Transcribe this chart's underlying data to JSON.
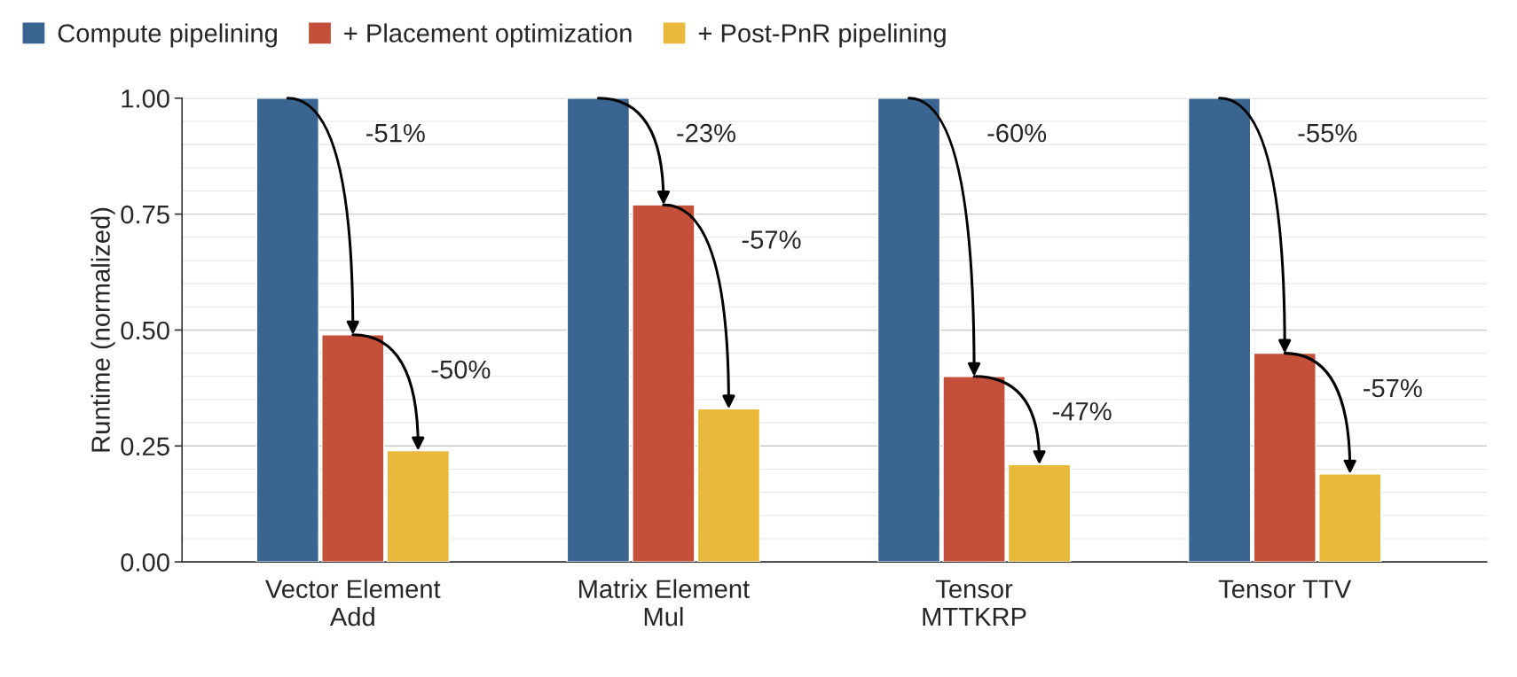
{
  "chart_data": {
    "type": "bar",
    "categories": [
      "Vector Element\nAdd",
      "Matrix Element\nMul",
      "Tensor\nMTTKRP",
      "Tensor TTV"
    ],
    "series": [
      {
        "name": "Compute pipelining",
        "color": "#3a6591",
        "values": [
          1.0,
          1.0,
          1.0,
          1.0
        ]
      },
      {
        "name": "+ Placement optimization",
        "color": "#c5503a",
        "values": [
          0.49,
          0.77,
          0.4,
          0.45
        ]
      },
      {
        "name": "+ Post-PnR pipelining",
        "color": "#e8b93b",
        "values": [
          0.24,
          0.33,
          0.21,
          0.19
        ]
      }
    ],
    "ylabel": "Runtime (normalized)",
    "ylim": [
      0,
      1
    ],
    "yticks": [
      {
        "value": 0,
        "label": "0.00"
      },
      {
        "value": 0.25,
        "label": "0.25"
      },
      {
        "value": 0.5,
        "label": "0.50"
      },
      {
        "value": 0.75,
        "label": "0.75"
      },
      {
        "value": 1,
        "label": "1.00"
      }
    ],
    "grid": "y",
    "legend": "top left",
    "annotations": [
      "-51%",
      "-50%",
      "-23%",
      "-57%",
      "-60%",
      "-47%",
      "-55%",
      "-57%"
    ]
  }
}
